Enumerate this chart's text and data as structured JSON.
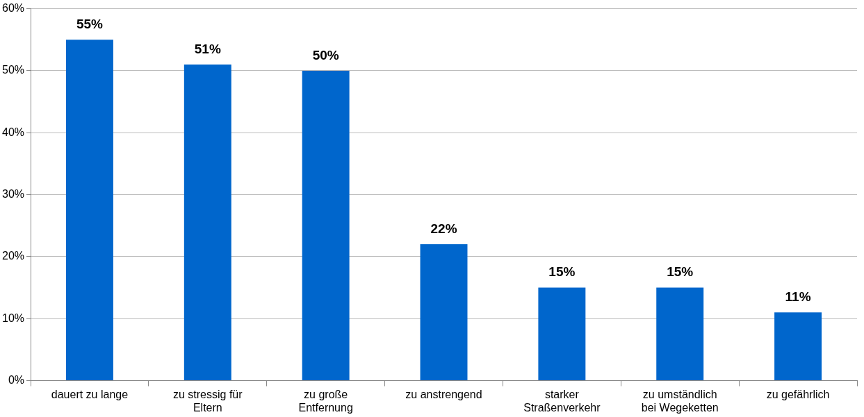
{
  "chart_data": {
    "type": "bar",
    "categories": [
      "dauert zu lange",
      "zu stressig für\nEltern",
      "zu große\nEntfernung",
      "zu anstrengend",
      "starker\nStraßenverkehr",
      "zu umständlich\nbei Wegeketten",
      "zu gefährlich"
    ],
    "values": [
      55,
      51,
      50,
      22,
      15,
      15,
      11
    ],
    "value_labels": [
      "55%",
      "51%",
      "50%",
      "22%",
      "15%",
      "15%",
      "11%"
    ],
    "color": "#0066cc",
    "ylim": [
      0,
      60
    ],
    "yticks": [
      {
        "value": 0,
        "label": "0%"
      },
      {
        "value": 10,
        "label": "10%"
      },
      {
        "value": 20,
        "label": "20%"
      },
      {
        "value": 30,
        "label": "30%"
      },
      {
        "value": 40,
        "label": "40%"
      },
      {
        "value": 50,
        "label": "50%"
      },
      {
        "value": 60,
        "label": "60%"
      }
    ],
    "grid": "y",
    "legend": false
  }
}
